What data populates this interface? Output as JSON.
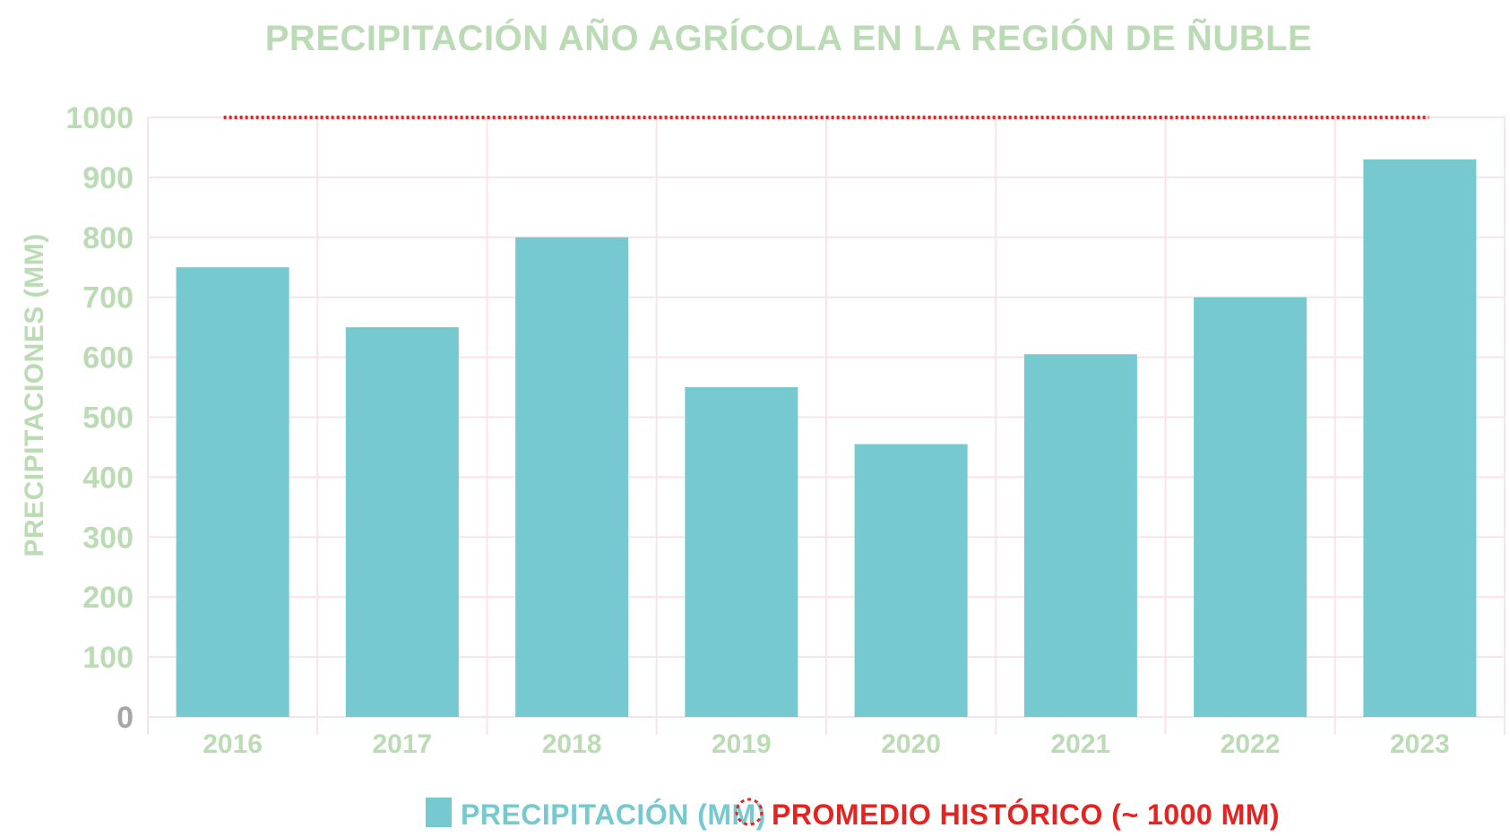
{
  "chart_data": {
    "type": "bar",
    "title": "PRECIPITACIÓN AÑO AGRÍCOLA EN LA REGIÓN DE ÑUBLE",
    "xlabel": "",
    "ylabel": "PRECIPITACIONES (MM)",
    "categories": [
      "2016",
      "2017",
      "2018",
      "2019",
      "2020",
      "2021",
      "2022",
      "2023"
    ],
    "series": [
      {
        "name": "PRECIPITACIÓN (MM)",
        "values": [
          750,
          650,
          800,
          550,
          455,
          605,
          700,
          930
        ]
      }
    ],
    "reference_line": {
      "name": "PROMEDIO HISTÓRICO (~ 1000 MM)",
      "value": 1000
    },
    "ylim": [
      0,
      1000
    ],
    "yticks": [
      0,
      100,
      200,
      300,
      400,
      500,
      600,
      700,
      800,
      900,
      1000
    ],
    "grid": true,
    "legend_position": "bottom-center",
    "colors": {
      "bar": "#76C9CE",
      "reference_line": "#E52421",
      "title": "#BADBB3",
      "axis_text": "#BADBB3",
      "zero_tick": "#A6A6A6",
      "grid": "#F7E4E8",
      "legend_bar_text": "#76C9CE",
      "legend_line_text": "#E52421"
    }
  }
}
